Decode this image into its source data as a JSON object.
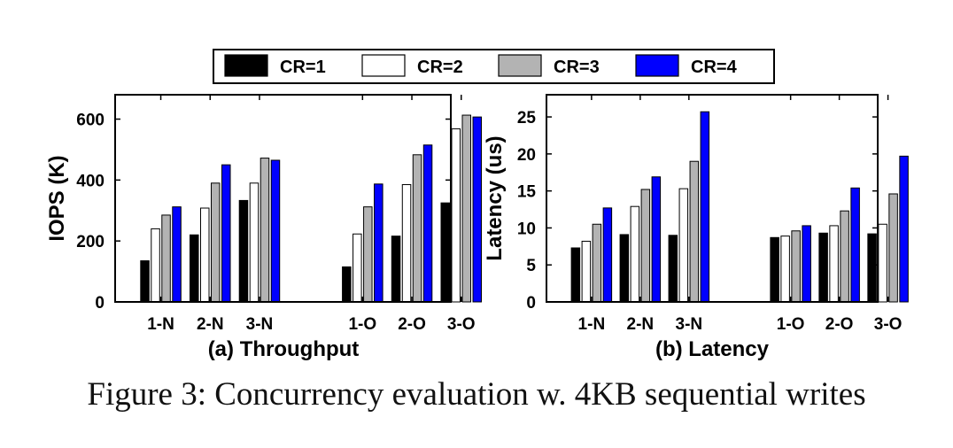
{
  "legend": {
    "items": [
      {
        "label": "CR=1",
        "color": "#000000"
      },
      {
        "label": "CR=2",
        "color": "#ffffff"
      },
      {
        "label": "CR=3",
        "color": "#b3b3b3"
      },
      {
        "label": "CR=4",
        "color": "#0000ff"
      }
    ]
  },
  "chart_data": [
    {
      "type": "bar",
      "title": "(a) Throughput",
      "xlabel": "",
      "ylabel": "IOPS (K)",
      "ylim": [
        0,
        680
      ],
      "yticks": [
        0,
        200,
        400,
        600
      ],
      "categories": [
        "1-N",
        "2-N",
        "3-N",
        "1-O",
        "2-O",
        "3-O"
      ],
      "series": [
        {
          "name": "CR=1",
          "values": [
            135,
            220,
            333,
            115,
            216,
            325
          ]
        },
        {
          "name": "CR=2",
          "values": [
            240,
            308,
            390,
            223,
            385,
            568
          ]
        },
        {
          "name": "CR=3",
          "values": [
            285,
            390,
            472,
            312,
            483,
            613
          ]
        },
        {
          "name": "CR=4",
          "values": [
            312,
            450,
            465,
            387,
            515,
            607
          ]
        }
      ]
    },
    {
      "type": "bar",
      "title": "(b) Latency",
      "xlabel": "",
      "ylabel": "Latency (us)",
      "ylim": [
        0,
        28
      ],
      "yticks": [
        0,
        5,
        10,
        15,
        20,
        25
      ],
      "categories": [
        "1-N",
        "2-N",
        "3-N",
        "1-O",
        "2-O",
        "3-O"
      ],
      "series": [
        {
          "name": "CR=1",
          "values": [
            7.3,
            9.1,
            9.0,
            8.7,
            9.3,
            9.2
          ]
        },
        {
          "name": "CR=2",
          "values": [
            8.2,
            12.9,
            15.3,
            8.9,
            10.3,
            10.5
          ]
        },
        {
          "name": "CR=3",
          "values": [
            10.5,
            15.2,
            19.0,
            9.6,
            12.3,
            14.6
          ]
        },
        {
          "name": "CR=4",
          "values": [
            12.7,
            16.9,
            25.7,
            10.3,
            15.4,
            19.7
          ]
        }
      ]
    }
  ],
  "caption": "Figure 3: Concurrency evaluation w. 4KB sequential writes"
}
